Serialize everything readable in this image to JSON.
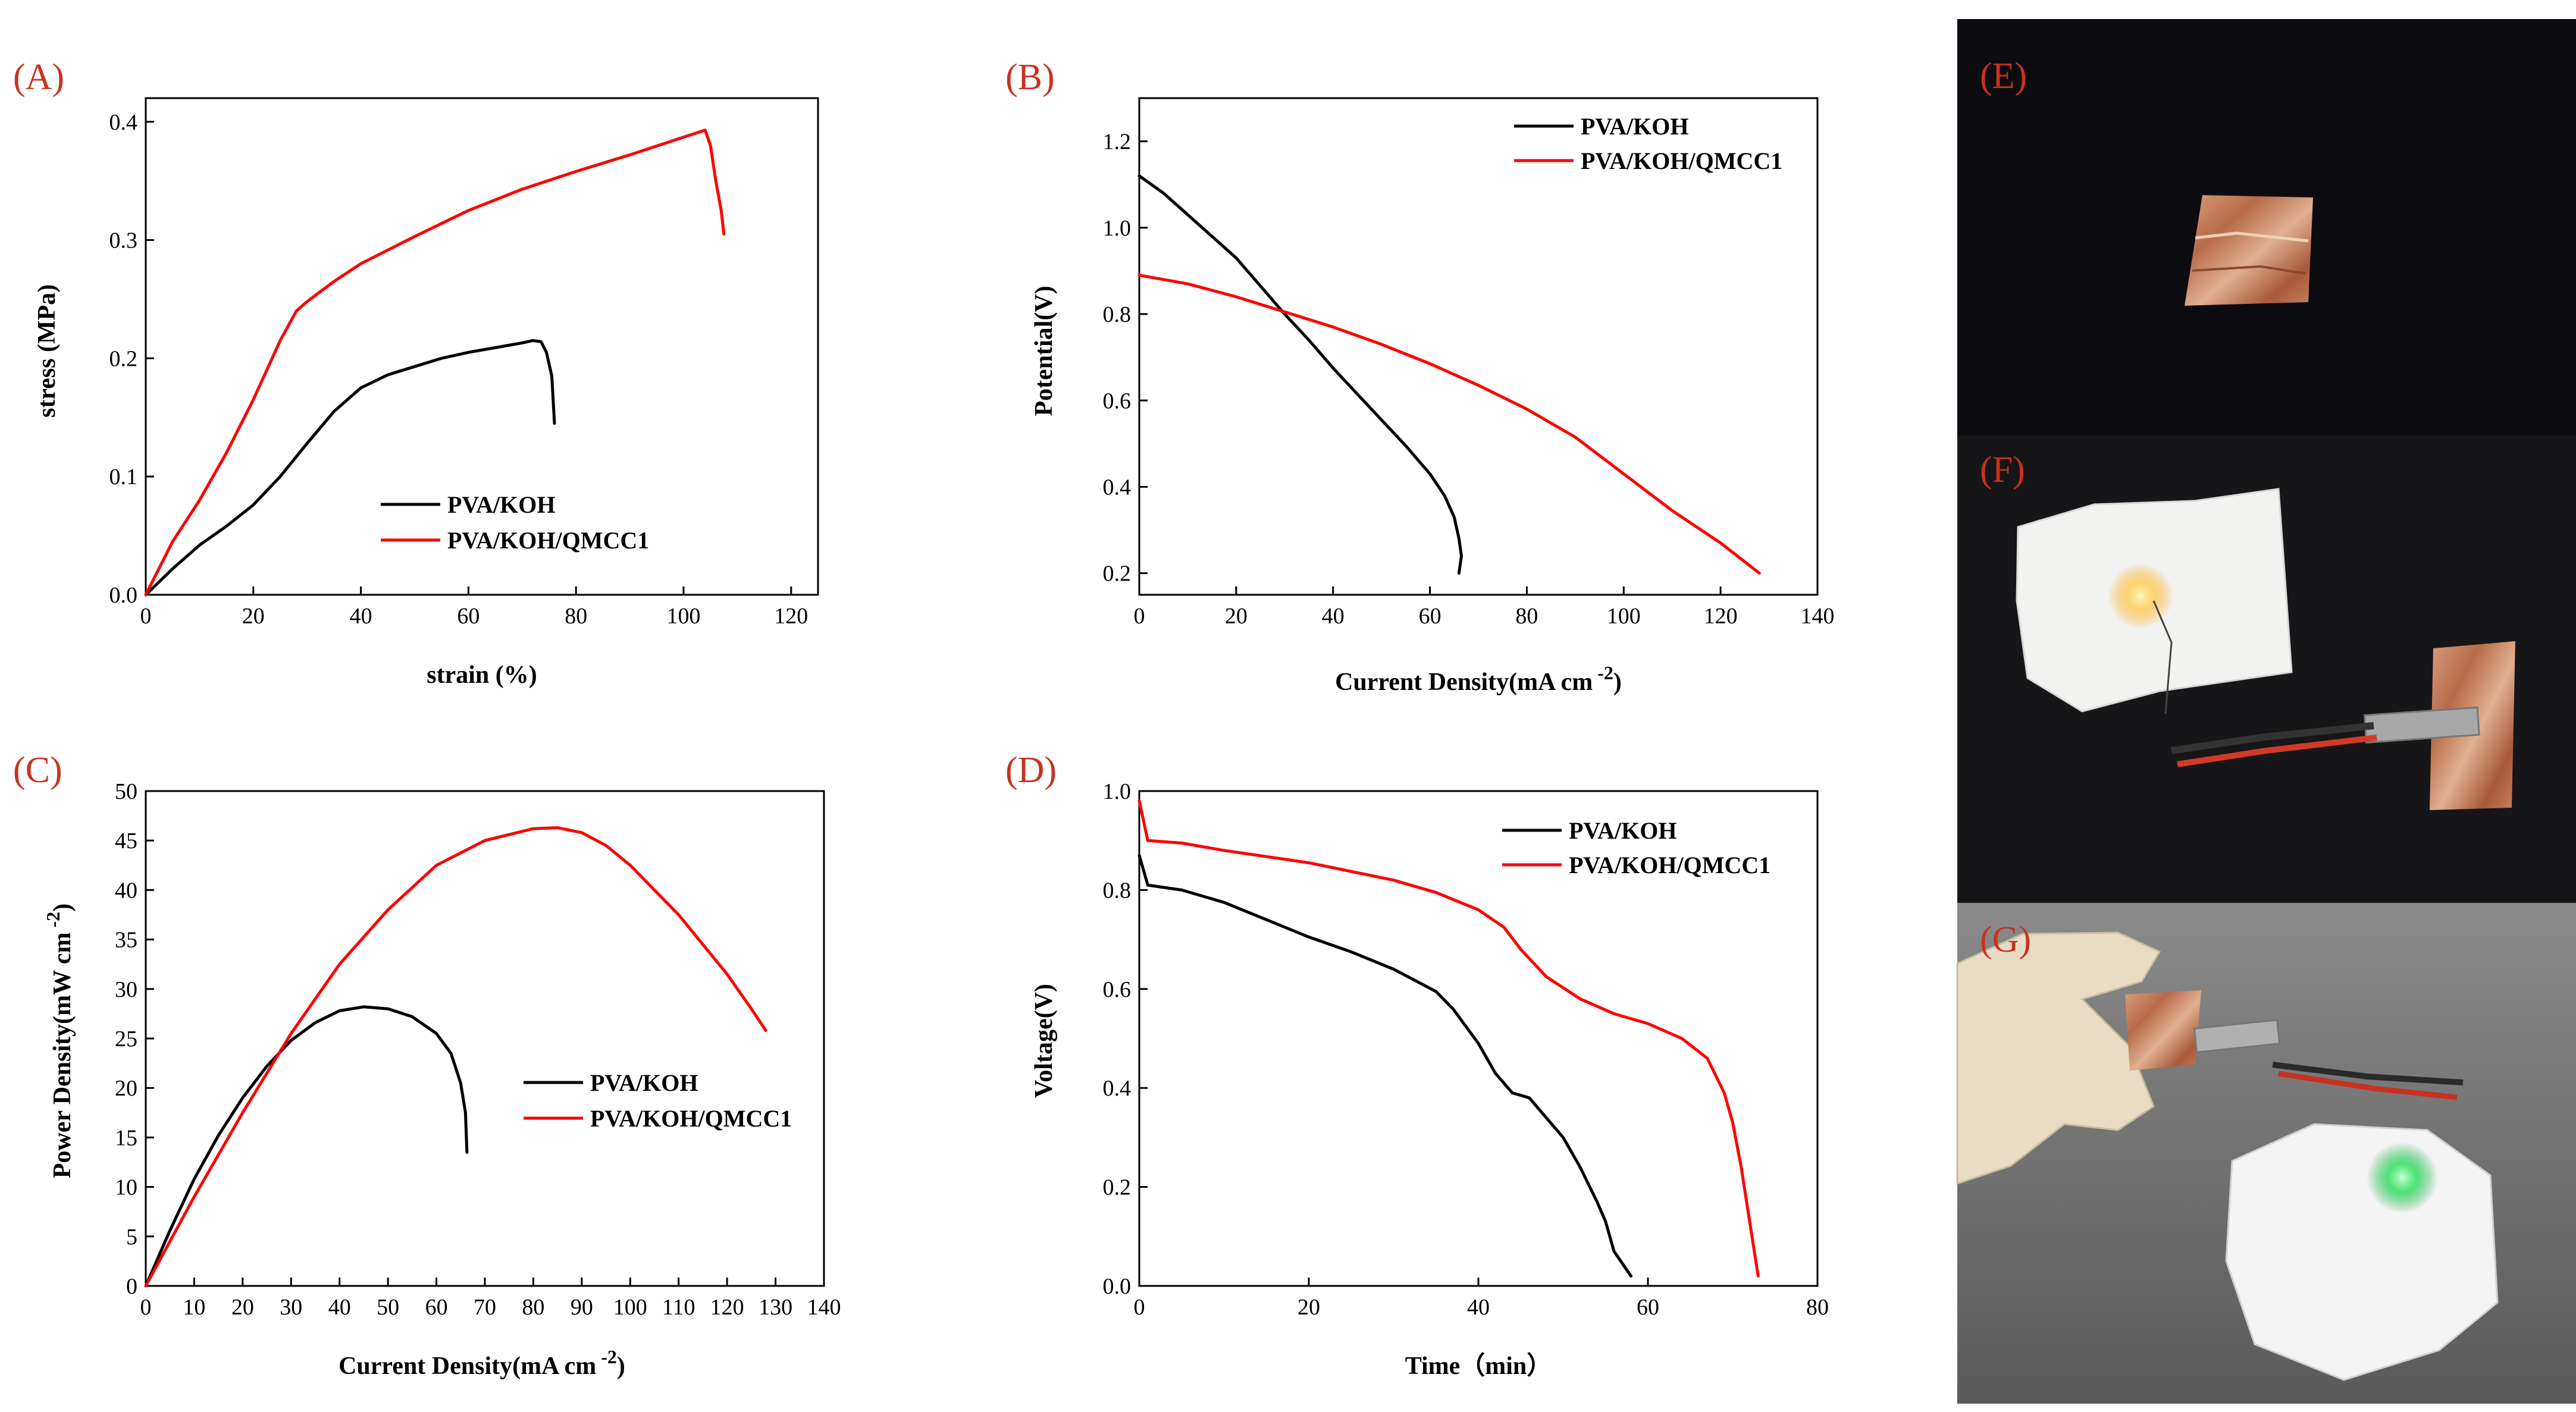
{
  "colors": {
    "series1": "#000000",
    "series2": "#ff0000",
    "panel_label": "#c8321e"
  },
  "chart_data": [
    {
      "id": "A",
      "panel_label": "(A)",
      "type": "line",
      "xlabel": "strain (%)",
      "ylabel": "stress (MPa)",
      "ylabel_sup": "",
      "xlim": [
        0,
        125
      ],
      "ylim": [
        0,
        0.42
      ],
      "xticks": [
        0,
        20,
        40,
        60,
        80,
        100,
        120
      ],
      "yticks": [
        0.0,
        0.1,
        0.2,
        0.3,
        0.4
      ],
      "ydecimals": 1,
      "legend": {
        "position": "lower-middle"
      },
      "series": [
        {
          "name": "PVA/KOH",
          "color": "#000000",
          "points": [
            [
              0,
              0
            ],
            [
              5,
              0.022
            ],
            [
              10,
              0.042
            ],
            [
              15,
              0.058
            ],
            [
              20,
              0.076
            ],
            [
              25,
              0.1
            ],
            [
              30,
              0.128
            ],
            [
              35,
              0.155
            ],
            [
              40,
              0.175
            ],
            [
              45,
              0.186
            ],
            [
              50,
              0.193
            ],
            [
              55,
              0.2
            ],
            [
              60,
              0.205
            ],
            [
              65,
              0.209
            ],
            [
              70,
              0.213
            ],
            [
              72,
              0.215
            ],
            [
              73.5,
              0.214
            ],
            [
              74.5,
              0.205
            ],
            [
              75.5,
              0.185
            ],
            [
              76,
              0.145
            ]
          ]
        },
        {
          "name": "PVA/KOH/QMCC1",
          "color": "#ff0000",
          "points": [
            [
              0,
              0
            ],
            [
              5,
              0.045
            ],
            [
              10,
              0.08
            ],
            [
              15,
              0.12
            ],
            [
              20,
              0.165
            ],
            [
              25,
              0.215
            ],
            [
              28,
              0.24
            ],
            [
              30,
              0.248
            ],
            [
              35,
              0.265
            ],
            [
              40,
              0.28
            ],
            [
              50,
              0.303
            ],
            [
              60,
              0.325
            ],
            [
              70,
              0.343
            ],
            [
              80,
              0.358
            ],
            [
              90,
              0.372
            ],
            [
              100,
              0.387
            ],
            [
              104,
              0.393
            ],
            [
              105,
              0.38
            ],
            [
              106,
              0.35
            ],
            [
              107,
              0.325
            ],
            [
              107.5,
              0.305
            ]
          ]
        }
      ]
    },
    {
      "id": "B",
      "panel_label": "(B)",
      "type": "line",
      "xlabel": "Current Density(mA cm",
      "xlabel_sup": "-2",
      "ylabel": "Potential(V)",
      "ylabel_sup": "",
      "xlim": [
        0,
        140
      ],
      "ylim": [
        0.15,
        1.3
      ],
      "xticks": [
        0,
        20,
        40,
        60,
        80,
        100,
        120,
        140
      ],
      "yticks": [
        0.2,
        0.4,
        0.6,
        0.8,
        1.0,
        1.2
      ],
      "ydecimals": 1,
      "legend": {
        "position": "top-right"
      },
      "series": [
        {
          "name": "PVA/KOH",
          "color": "#000000",
          "points": [
            [
              0,
              1.12
            ],
            [
              5,
              1.08
            ],
            [
              10,
              1.03
            ],
            [
              15,
              0.98
            ],
            [
              20,
              0.93
            ],
            [
              25,
              0.865
            ],
            [
              30,
              0.8
            ],
            [
              35,
              0.74
            ],
            [
              40,
              0.675
            ],
            [
              45,
              0.615
            ],
            [
              50,
              0.555
            ],
            [
              55,
              0.495
            ],
            [
              60,
              0.43
            ],
            [
              63,
              0.38
            ],
            [
              65,
              0.33
            ],
            [
              66,
              0.28
            ],
            [
              66.5,
              0.24
            ],
            [
              66,
              0.2
            ]
          ]
        },
        {
          "name": "PVA/KOH/QMCC1",
          "color": "#ff0000",
          "points": [
            [
              0,
              0.89
            ],
            [
              10,
              0.87
            ],
            [
              20,
              0.84
            ],
            [
              30,
              0.805
            ],
            [
              40,
              0.77
            ],
            [
              50,
              0.73
            ],
            [
              60,
              0.685
            ],
            [
              70,
              0.635
            ],
            [
              80,
              0.58
            ],
            [
              90,
              0.515
            ],
            [
              100,
              0.43
            ],
            [
              110,
              0.345
            ],
            [
              120,
              0.27
            ],
            [
              128,
              0.2
            ]
          ]
        }
      ]
    },
    {
      "id": "C",
      "panel_label": "(C)",
      "type": "line",
      "xlabel": "Current Density(mA cm",
      "xlabel_sup": "-2",
      "ylabel": "Power Density(mW cm",
      "ylabel_sup": "-2",
      "xlim": [
        0,
        140
      ],
      "ylim": [
        0,
        50
      ],
      "xticks": [
        0,
        10,
        20,
        30,
        40,
        50,
        60,
        70,
        80,
        90,
        100,
        110,
        120,
        130,
        140
      ],
      "yticks": [
        0,
        5,
        10,
        15,
        20,
        25,
        30,
        35,
        40,
        45,
        50
      ],
      "ydecimals": 0,
      "legend": {
        "position": "lower-right"
      },
      "series": [
        {
          "name": "PVA/KOH",
          "color": "#000000",
          "points": [
            [
              0,
              0
            ],
            [
              5,
              5.6
            ],
            [
              10,
              10.8
            ],
            [
              15,
              15.2
            ],
            [
              20,
              19
            ],
            [
              25,
              22.2
            ],
            [
              30,
              24.8
            ],
            [
              35,
              26.6
            ],
            [
              40,
              27.8
            ],
            [
              45,
              28.2
            ],
            [
              50,
              28
            ],
            [
              55,
              27.2
            ],
            [
              60,
              25.5
            ],
            [
              63,
              23.5
            ],
            [
              65,
              20.5
            ],
            [
              66,
              17.5
            ],
            [
              66.3,
              13.5
            ]
          ]
        },
        {
          "name": "PVA/KOH/QMCC1",
          "color": "#ff0000",
          "points": [
            [
              0,
              0
            ],
            [
              10,
              9
            ],
            [
              20,
              17.5
            ],
            [
              30,
              25.5
            ],
            [
              40,
              32.5
            ],
            [
              50,
              38
            ],
            [
              60,
              42.5
            ],
            [
              70,
              45
            ],
            [
              80,
              46.2
            ],
            [
              85,
              46.3
            ],
            [
              90,
              45.8
            ],
            [
              95,
              44.5
            ],
            [
              100,
              42.5
            ],
            [
              110,
              37.5
            ],
            [
              120,
              31.5
            ],
            [
              125,
              28
            ],
            [
              128,
              25.8
            ]
          ]
        }
      ]
    },
    {
      "id": "D",
      "panel_label": "(D)",
      "type": "line",
      "xlabel": "Time（min）",
      "xlabel_sup": "",
      "ylabel": "Voltage(V)",
      "ylabel_sup": "",
      "xlim": [
        0,
        80
      ],
      "ylim": [
        0,
        1.0
      ],
      "xticks": [
        0,
        20,
        40,
        60,
        80
      ],
      "yticks": [
        0.0,
        0.2,
        0.4,
        0.6,
        0.8,
        1.0
      ],
      "ydecimals": 1,
      "legend": {
        "position": "top-right"
      },
      "series": [
        {
          "name": "PVA/KOH",
          "color": "#000000",
          "points": [
            [
              0,
              0.87
            ],
            [
              1,
              0.81
            ],
            [
              5,
              0.8
            ],
            [
              10,
              0.775
            ],
            [
              15,
              0.74
            ],
            [
              20,
              0.705
            ],
            [
              25,
              0.675
            ],
            [
              30,
              0.64
            ],
            [
              35,
              0.595
            ],
            [
              37,
              0.56
            ],
            [
              40,
              0.49
            ],
            [
              42,
              0.43
            ],
            [
              44,
              0.39
            ],
            [
              46,
              0.38
            ],
            [
              48,
              0.34
            ],
            [
              50,
              0.3
            ],
            [
              52,
              0.24
            ],
            [
              54,
              0.17
            ],
            [
              55,
              0.13
            ],
            [
              56,
              0.07
            ],
            [
              58,
              0.02
            ]
          ]
        },
        {
          "name": "PVA/KOH/QMCC1",
          "color": "#ff0000",
          "points": [
            [
              0,
              0.98
            ],
            [
              1,
              0.9
            ],
            [
              5,
              0.895
            ],
            [
              10,
              0.88
            ],
            [
              20,
              0.855
            ],
            [
              30,
              0.82
            ],
            [
              35,
              0.795
            ],
            [
              40,
              0.76
            ],
            [
              43,
              0.725
            ],
            [
              45,
              0.68
            ],
            [
              48,
              0.625
            ],
            [
              52,
              0.58
            ],
            [
              56,
              0.55
            ],
            [
              60,
              0.53
            ],
            [
              64,
              0.5
            ],
            [
              67,
              0.46
            ],
            [
              69,
              0.39
            ],
            [
              70,
              0.33
            ],
            [
              71,
              0.24
            ],
            [
              72,
              0.13
            ],
            [
              73,
              0.02
            ]
          ]
        }
      ]
    }
  ],
  "photos": [
    {
      "id": "E",
      "label": "(E)"
    },
    {
      "id": "F",
      "label": "(F)"
    },
    {
      "id": "G",
      "label": "(G)"
    }
  ]
}
